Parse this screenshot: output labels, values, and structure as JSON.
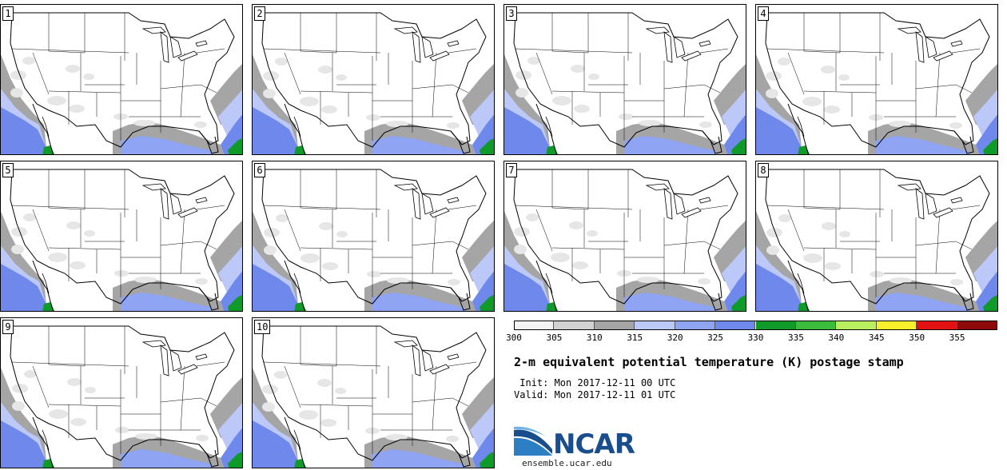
{
  "panel_labels": [
    "1",
    "2",
    "3",
    "4",
    "5",
    "6",
    "7",
    "8",
    "9",
    "10"
  ],
  "colorbar": {
    "ticks": [
      "300",
      "305",
      "310",
      "315",
      "320",
      "325",
      "330",
      "335",
      "340",
      "345",
      "350",
      "355"
    ],
    "colors": [
      "#f3f3f3",
      "#d2d2d2",
      "#a5a5a5",
      "#bbc8f8",
      "#8fa4f3",
      "#6f88ec",
      "#0f9a2a",
      "#3cbc3c",
      "#b8f060",
      "#f8f02a",
      "#e21212",
      "#8c0a0a"
    ]
  },
  "title": "2-m equivalent potential temperature (K) postage stamp",
  "init_line": " Init: Mon 2017-12-11 00 UTC",
  "valid_line": "Valid: Mon 2017-12-11 01 UTC",
  "logo": {
    "text": "NCAR",
    "subtitle": "ensemble.ucar.edu",
    "icon": "ncar-logo-icon"
  }
}
